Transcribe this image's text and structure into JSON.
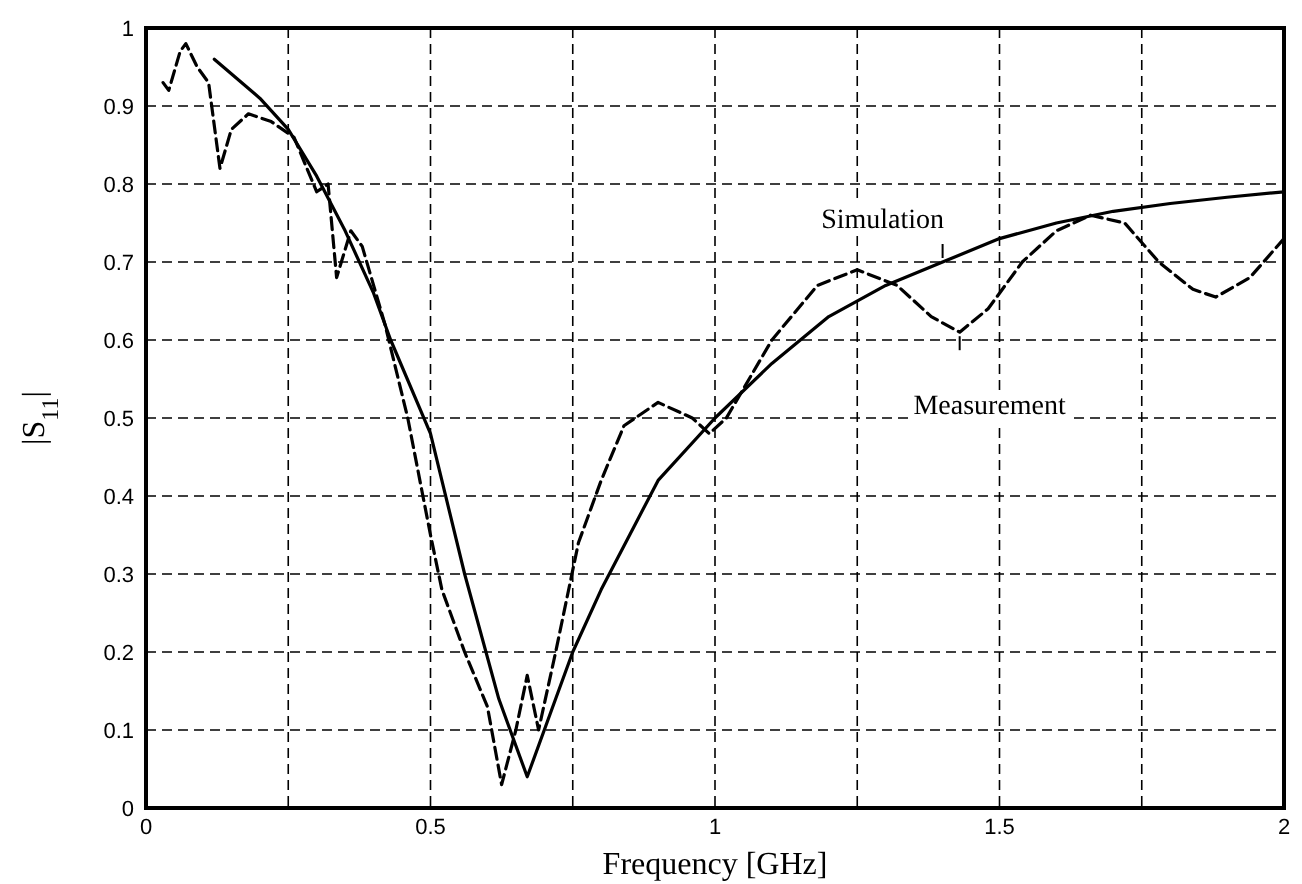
{
  "chart_data": {
    "type": "line",
    "xlabel": "Frequency [GHz]",
    "ylabel": "|S$_{11}$|",
    "xlim": [
      0,
      2
    ],
    "ylim": [
      0,
      1
    ],
    "xticks": [
      0,
      {
        "value": 0.25,
        "label": null
      },
      0.5,
      {
        "value": 0.75,
        "label": null
      },
      1,
      {
        "value": 1.25,
        "label": null
      },
      1.5,
      {
        "value": 1.75,
        "label": null
      },
      2
    ],
    "yticks": [
      0,
      0.1,
      0.2,
      0.3,
      0.4,
      0.5,
      0.6,
      0.7,
      0.8,
      0.9,
      1
    ],
    "grid": true,
    "series": [
      {
        "color": "#000000",
        "line_style": "solid",
        "x": [
          0.12,
          0.2,
          0.25,
          0.3,
          0.35,
          0.4,
          0.43,
          0.5,
          0.56,
          0.62,
          0.67,
          0.72,
          0.75,
          0.8,
          0.85,
          0.9,
          1.0,
          1.1,
          1.2,
          1.3,
          1.4,
          1.5,
          1.6,
          1.7,
          1.8,
          1.9,
          2.0
        ],
        "values": [
          0.96,
          0.91,
          0.87,
          0.81,
          0.74,
          0.66,
          0.6,
          0.48,
          0.3,
          0.14,
          0.04,
          0.14,
          0.2,
          0.28,
          0.35,
          0.42,
          0.5,
          0.57,
          0.63,
          0.67,
          0.7,
          0.73,
          0.75,
          0.765,
          0.775,
          0.783,
          0.79
        ]
      },
      {
        "color": "#000000",
        "line_style": "dashed",
        "x": [
          0.03,
          0.04,
          0.06,
          0.07,
          0.09,
          0.11,
          0.13,
          0.15,
          0.18,
          0.22,
          0.26,
          0.3,
          0.32,
          0.335,
          0.36,
          0.38,
          0.42,
          0.46,
          0.5,
          0.52,
          0.56,
          0.6,
          0.625,
          0.65,
          0.67,
          0.69,
          0.72,
          0.76,
          0.8,
          0.84,
          0.9,
          0.96,
          0.99,
          1.02,
          1.1,
          1.18,
          1.25,
          1.32,
          1.38,
          1.43,
          1.48,
          1.54,
          1.6,
          1.66,
          1.72,
          1.78,
          1.84,
          1.88,
          1.94,
          2.0
        ],
        "values": [
          0.93,
          0.92,
          0.97,
          0.98,
          0.95,
          0.93,
          0.82,
          0.87,
          0.89,
          0.88,
          0.86,
          0.79,
          0.8,
          0.68,
          0.74,
          0.72,
          0.62,
          0.5,
          0.35,
          0.28,
          0.2,
          0.13,
          0.03,
          0.1,
          0.17,
          0.1,
          0.2,
          0.34,
          0.42,
          0.49,
          0.52,
          0.5,
          0.48,
          0.5,
          0.6,
          0.67,
          0.69,
          0.67,
          0.63,
          0.61,
          0.64,
          0.7,
          0.74,
          0.76,
          0.75,
          0.7,
          0.665,
          0.655,
          0.68,
          0.73
        ]
      }
    ],
    "annotations": [
      {
        "text": "Simulation",
        "x": 1.4,
        "y": 0.7
      },
      {
        "text": "Measurement",
        "x": 1.43,
        "y": 0.61
      }
    ]
  }
}
